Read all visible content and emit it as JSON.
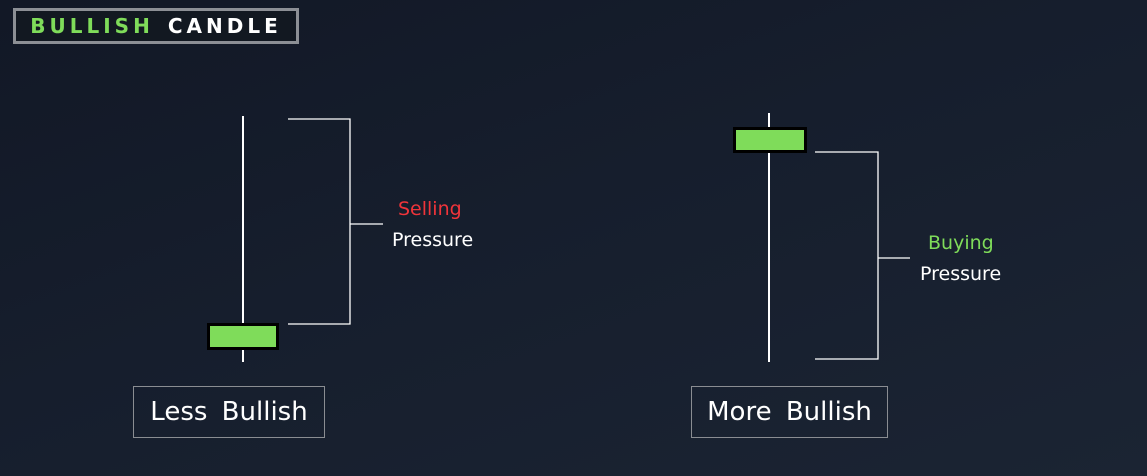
{
  "header": {
    "title_word1": "BULLISH",
    "title_word2": "CANDLE",
    "accent_color": "#7fdc5a"
  },
  "left_candle": {
    "label": "Less Bullish",
    "pressure_word": "Selling",
    "pressure_word_color": "#f0343a",
    "pressure_noun": "Pressure",
    "body_color": "#7fdc5a"
  },
  "right_candle": {
    "label": "More Bullish",
    "pressure_word": "Buying",
    "pressure_word_color": "#7fdc5a",
    "pressure_noun": "Pressure",
    "body_color": "#7fdc5a"
  }
}
